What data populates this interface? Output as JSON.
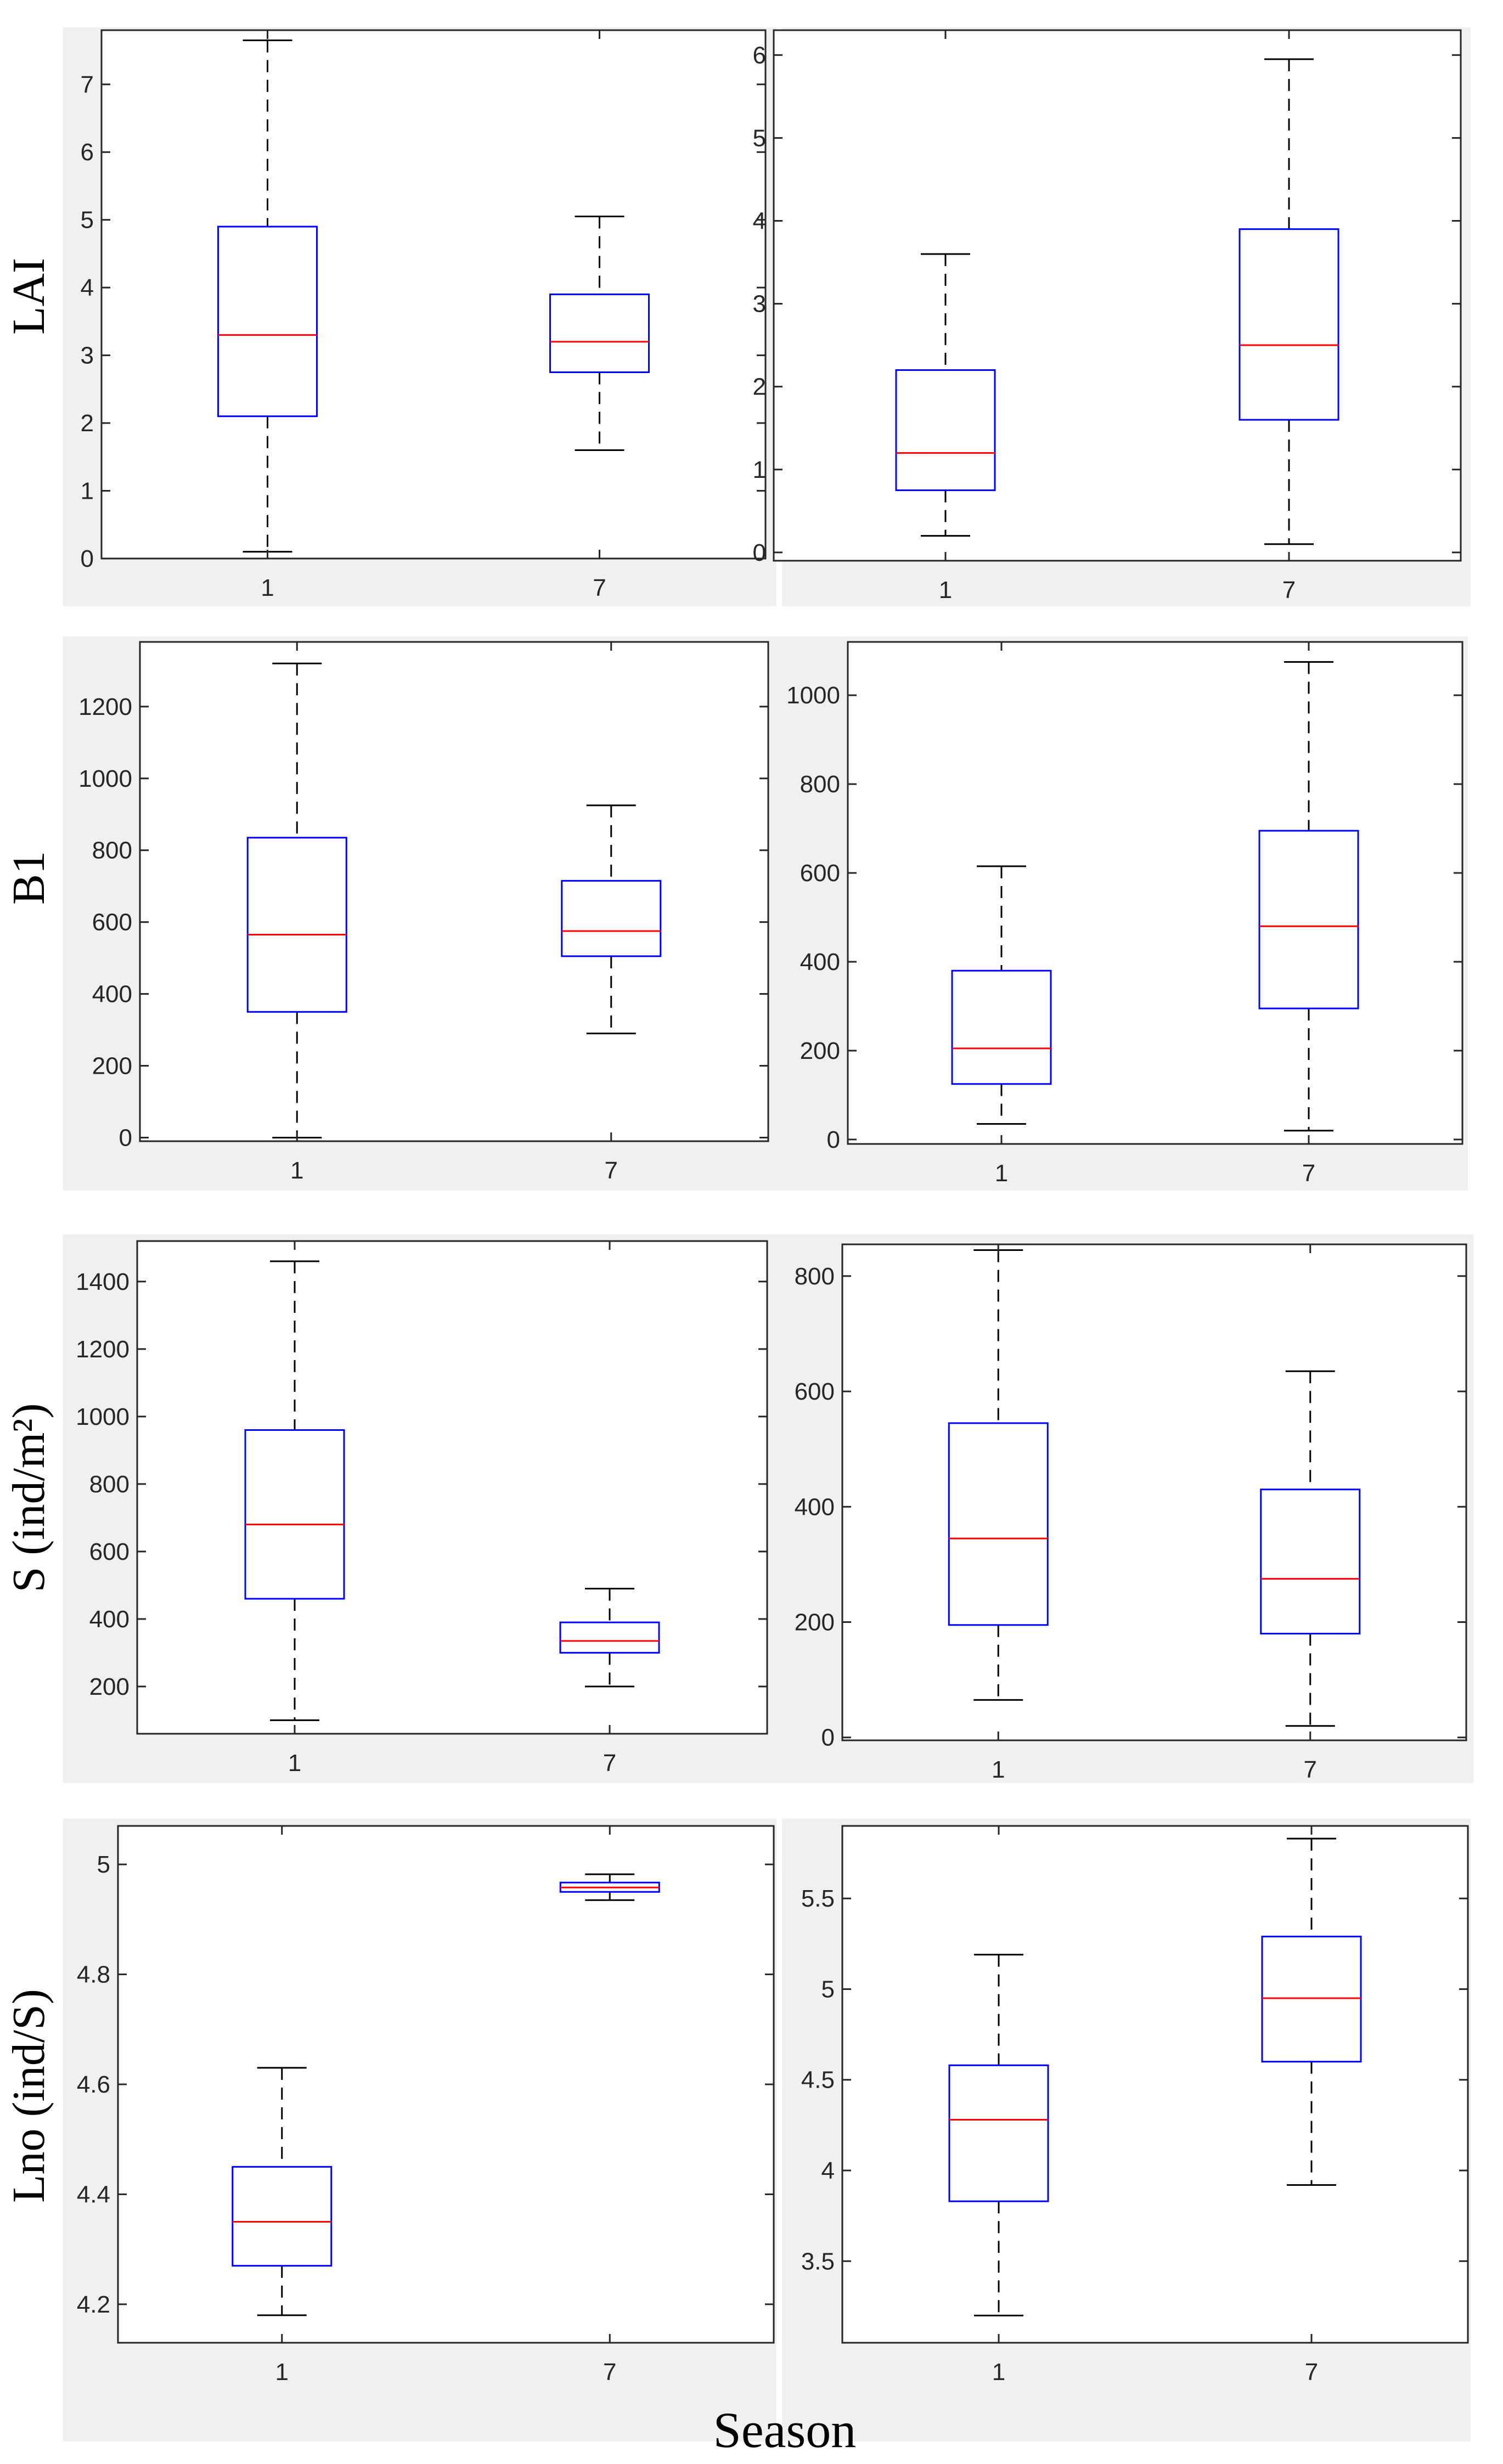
{
  "chart_data": [
    {
      "type": "boxplot",
      "ylabel": "LAI",
      "xlabel": "",
      "categories": [
        "1",
        "7"
      ],
      "ylim": [
        0,
        7.8
      ],
      "yticks": [
        "0",
        "1",
        "2",
        "3",
        "4",
        "5",
        "6",
        "7"
      ],
      "boxes": [
        {
          "category": "1",
          "min": 0.1,
          "q1": 2.1,
          "median": 3.3,
          "q3": 4.9,
          "max": 7.65
        },
        {
          "category": "7",
          "min": 1.6,
          "q1": 2.75,
          "median": 3.2,
          "q3": 3.9,
          "max": 5.05
        }
      ]
    },
    {
      "type": "boxplot",
      "ylabel": "",
      "xlabel": "",
      "categories": [
        "1",
        "7"
      ],
      "ylim": [
        -0.1,
        6.3
      ],
      "yticks": [
        "0",
        "1",
        "2",
        "3",
        "4",
        "5",
        "6"
      ],
      "boxes": [
        {
          "category": "1",
          "min": 0.2,
          "q1": 0.75,
          "median": 1.2,
          "q3": 2.2,
          "max": 3.6
        },
        {
          "category": "7",
          "min": 0.1,
          "q1": 1.6,
          "median": 2.5,
          "q3": 3.9,
          "max": 5.95
        }
      ]
    },
    {
      "type": "boxplot",
      "ylabel": "B1",
      "xlabel": "",
      "categories": [
        "1",
        "7"
      ],
      "ylim": [
        -10,
        1380
      ],
      "yticks": [
        "0",
        "200",
        "400",
        "600",
        "800",
        "1000",
        "1200"
      ],
      "boxes": [
        {
          "category": "1",
          "min": 0,
          "q1": 350,
          "median": 565,
          "q3": 835,
          "max": 1320
        },
        {
          "category": "7",
          "min": 290,
          "q1": 505,
          "median": 575,
          "q3": 715,
          "max": 925
        }
      ]
    },
    {
      "type": "boxplot",
      "ylabel": "",
      "xlabel": "",
      "categories": [
        "1",
        "7"
      ],
      "ylim": [
        -10,
        1120
      ],
      "yticks": [
        "0",
        "200",
        "400",
        "600",
        "800",
        "1000"
      ],
      "boxes": [
        {
          "category": "1",
          "min": 35,
          "q1": 125,
          "median": 205,
          "q3": 380,
          "max": 615
        },
        {
          "category": "7",
          "min": 20,
          "q1": 295,
          "median": 480,
          "q3": 695,
          "max": 1075
        }
      ]
    },
    {
      "type": "boxplot",
      "ylabel": "S (ind/m²)",
      "xlabel": "",
      "categories": [
        "1",
        "7"
      ],
      "ylim": [
        60,
        1520
      ],
      "yticks": [
        "200",
        "400",
        "600",
        "800",
        "1000",
        "1200",
        "1400"
      ],
      "boxes": [
        {
          "category": "1",
          "min": 100,
          "q1": 460,
          "median": 680,
          "q3": 960,
          "max": 1460
        },
        {
          "category": "7",
          "min": 200,
          "q1": 300,
          "median": 335,
          "q3": 390,
          "max": 490
        }
      ]
    },
    {
      "type": "boxplot",
      "ylabel": "",
      "xlabel": "",
      "categories": [
        "1",
        "7"
      ],
      "ylim": [
        -5,
        855
      ],
      "yticks": [
        "0",
        "200",
        "400",
        "600",
        "800"
      ],
      "boxes": [
        {
          "category": "1",
          "min": 65,
          "q1": 195,
          "median": 345,
          "q3": 545,
          "max": 845
        },
        {
          "category": "7",
          "min": 20,
          "q1": 180,
          "median": 275,
          "q3": 430,
          "max": 635
        }
      ]
    },
    {
      "type": "boxplot",
      "ylabel": "Lno (ind/S)",
      "xlabel": "",
      "categories": [
        "1",
        "7"
      ],
      "ylim": [
        4.13,
        5.07
      ],
      "yticks": [
        "4.2",
        "4.4",
        "4.6",
        "4.8",
        "5"
      ],
      "boxes": [
        {
          "category": "1",
          "min": 4.18,
          "q1": 4.27,
          "median": 4.35,
          "q3": 4.45,
          "max": 4.63
        },
        {
          "category": "7",
          "min": 4.935,
          "q1": 4.95,
          "median": 4.958,
          "q3": 4.967,
          "max": 4.982
        }
      ]
    },
    {
      "type": "boxplot",
      "ylabel": "",
      "xlabel": "",
      "categories": [
        "1",
        "7"
      ],
      "ylim": [
        3.05,
        5.9
      ],
      "yticks": [
        "3.5",
        "4",
        "4.5",
        "5",
        "5.5"
      ],
      "boxes": [
        {
          "category": "1",
          "min": 3.2,
          "q1": 3.83,
          "median": 4.28,
          "q3": 4.58,
          "max": 5.19
        },
        {
          "category": "7",
          "min": 3.92,
          "q1": 4.6,
          "median": 4.95,
          "q3": 5.29,
          "max": 5.83
        }
      ]
    }
  ],
  "figure": {
    "xlabel": "Season",
    "colors": {
      "box": "#0000ff",
      "median": "#ff0000",
      "whisker": "#000000",
      "axes": "#262626",
      "panel_background": "#f0f0f0",
      "plot_background": "#ffffff"
    }
  }
}
